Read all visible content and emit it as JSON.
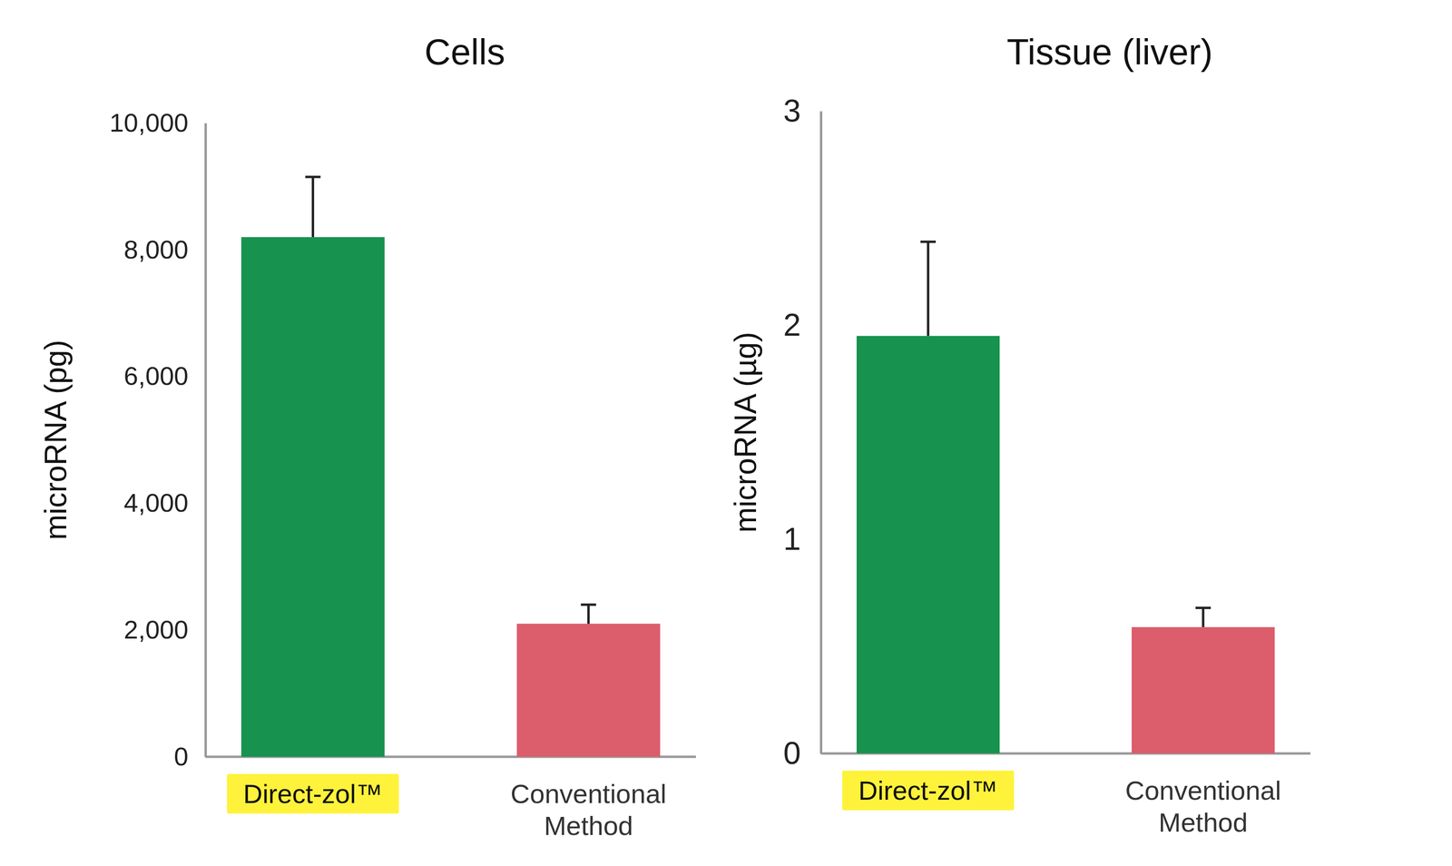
{
  "chart_data": [
    {
      "type": "bar",
      "title": "Cells",
      "y_label": "microRNA (pg)",
      "categories": [
        "Direct-zol™",
        "Conventional Method"
      ],
      "values": [
        8200,
        2100
      ],
      "errors": [
        950,
        300
      ],
      "colors": [
        "#17924f",
        "#dc5d6b"
      ],
      "ylim": [
        0,
        10000
      ],
      "yticks": [
        0,
        {
          "value": 2000,
          "label": "2,000"
        },
        {
          "value": 4000,
          "label": "4,000"
        },
        {
          "value": 6000,
          "label": "6,000"
        },
        {
          "value": 8000,
          "label": "8,000"
        },
        {
          "value": 10000,
          "label": "10,000"
        }
      ]
    },
    {
      "type": "bar",
      "title": "Tissue (liver)",
      "y_label": "microRNA (µg)",
      "categories": [
        "Direct-zol™",
        "Conventional Method"
      ],
      "values": [
        1.95,
        0.59
      ],
      "errors": [
        0.44,
        0.09
      ],
      "colors": [
        "#17924f",
        "#dc5d6b"
      ],
      "ylim": [
        0,
        3
      ],
      "yticks": [
        0,
        1,
        2,
        3
      ]
    }
  ]
}
